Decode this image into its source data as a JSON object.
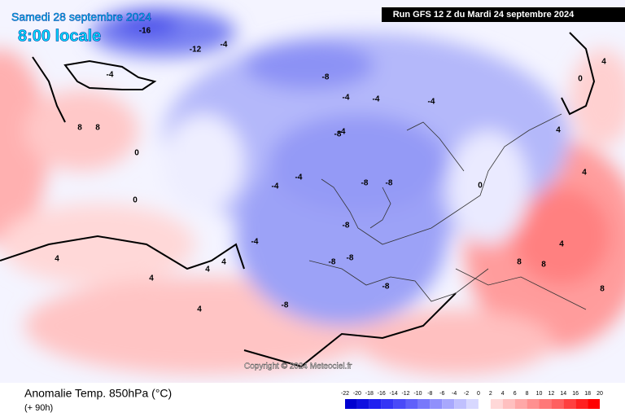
{
  "header": {
    "date": "Samedi 28 septembre 2024",
    "time": "8:00 locale",
    "run": "Run GFS 12 Z du Mardi 24 septembre 2024"
  },
  "copyright": "Copyright © 2024 Meteociel.fr",
  "footer": {
    "title": "Anomalie Temp. 850hPa (°C)",
    "lead": "(+ 90h)"
  },
  "legend": {
    "ticks": [
      -22,
      -20,
      -18,
      -16,
      -14,
      -12,
      -10,
      -8,
      -6,
      -4,
      -2,
      0,
      2,
      4,
      6,
      8,
      10,
      12,
      14,
      16,
      18,
      20
    ],
    "colors": [
      "#0000d0",
      "#1010e0",
      "#2020f0",
      "#3535f5",
      "#4a4af8",
      "#6060fa",
      "#7878fb",
      "#9090fc",
      "#a8a8fd",
      "#c0c0fe",
      "#d8d8ff",
      "#ffffff",
      "#ffd8d8",
      "#ffc0c0",
      "#ffa8a8",
      "#ff9090",
      "#ff7878",
      "#ff6060",
      "#ff4040",
      "#ff2020",
      "#ff0000"
    ]
  },
  "map": {
    "labels": [
      "-16",
      "-12",
      "-4",
      "-4",
      "-8",
      "-4",
      "-4",
      "-4",
      "-8",
      "-8",
      "-8",
      "-8",
      "-4",
      "-4",
      "-8",
      "-8",
      "-8",
      "-8",
      "-4",
      "0",
      "0",
      "0",
      "4",
      "4",
      "4",
      "8",
      "8",
      "8",
      "8",
      "4",
      "4",
      "4",
      "8",
      "4",
      "0",
      "-4",
      "4",
      "4"
    ]
  }
}
